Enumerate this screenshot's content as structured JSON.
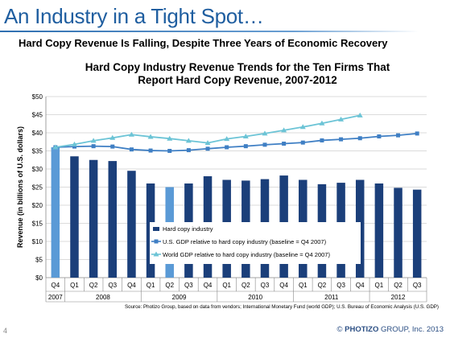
{
  "slide": {
    "title": "An Industry in a Tight Spot…",
    "subtitle": "Hard Copy Revenue Is Falling, Despite Three Years of Economic Recovery",
    "number": "4",
    "footer_prefix": "©",
    "footer_brand": "PHOTIZO",
    "footer_suffix": "GROUP, Inc. 2013"
  },
  "chart_data": {
    "type": "bar",
    "title_line1": "Hard Copy Industry Revenue Trends for the Ten Firms That",
    "title_line2": "Report Hard Copy Revenue, 2007-2012",
    "ylabel": "Revenue (in billions of U.S. dollars)",
    "ylim": [
      0,
      50
    ],
    "yticks": [
      "$0",
      "$5",
      "$10",
      "$15",
      "$20",
      "$25",
      "$30",
      "$35",
      "$40",
      "$45",
      "$50"
    ],
    "grid": true,
    "legend_position": "bottom-center-inside",
    "categories": [
      "Q4",
      "Q1",
      "Q2",
      "Q3",
      "Q4",
      "Q1",
      "Q2",
      "Q3",
      "Q4",
      "Q1",
      "Q2",
      "Q3",
      "Q4",
      "Q1",
      "Q2",
      "Q3",
      "Q4",
      "Q1",
      "Q2",
      "Q3"
    ],
    "years": [
      {
        "label": "2007",
        "span": 1
      },
      {
        "label": "2008",
        "span": 4
      },
      {
        "label": "2009",
        "span": 4
      },
      {
        "label": "2010",
        "span": 4
      },
      {
        "label": "2011",
        "span": 4
      },
      {
        "label": "2012",
        "span": 3
      }
    ],
    "series": [
      {
        "name": "Hard copy industry",
        "kind": "bar",
        "color": "#1b3f7a",
        "highlight_color": "#5a9ad6",
        "highlight_indices": [
          0,
          6
        ],
        "values": [
          36,
          33.5,
          32.5,
          32.2,
          29.5,
          26,
          25,
          26,
          28,
          27,
          26.8,
          27.2,
          28.2,
          27,
          25.8,
          26.2,
          27,
          26,
          24.8,
          24.3
        ]
      },
      {
        "name": "U.S. GDP relative to hard copy industry (baseline = Q4 2007)",
        "kind": "line",
        "color": "#3f7fc4",
        "marker": "square",
        "values": [
          36,
          36.2,
          36.3,
          36.2,
          35.4,
          35.1,
          35.0,
          35.2,
          35.6,
          36.0,
          36.3,
          36.7,
          37.0,
          37.3,
          37.9,
          38.2,
          38.5,
          39.0,
          39.3,
          39.8
        ]
      },
      {
        "name": "World GDP relative to hard copy industry (baseline = Q4 2007)",
        "kind": "line",
        "color": "#6cc4d6",
        "marker": "triangle",
        "values": [
          36,
          36.8,
          37.8,
          38.6,
          39.5,
          38.9,
          38.4,
          37.8,
          37.2,
          38.3,
          39.0,
          39.8,
          40.7,
          41.6,
          42.6,
          43.7,
          44.8,
          null,
          null,
          null
        ]
      }
    ]
  },
  "source_text": "Source: Photizo Group, based on data from vendors; International Monetary Fund (world GDP); U.S. Bureau of Economic Analysis (U.S. GDP)"
}
